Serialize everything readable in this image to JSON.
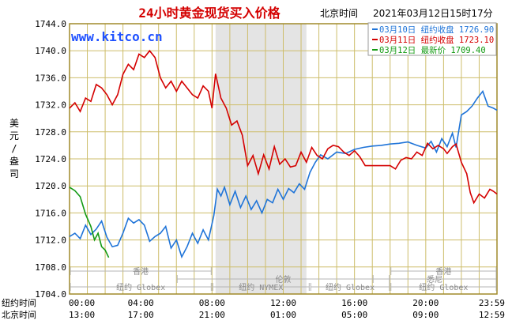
{
  "title": "24小时黄金现货买入价格",
  "location": "北京时间",
  "datetime": "2021年03月12日15时17分",
  "watermark": "www.kitco.cn",
  "colors": {
    "title": "#d40000",
    "watermark": "#1e50ff",
    "frame": "#a08a2a",
    "grid": "#cdbd6a",
    "night_band": "#e4e4e4",
    "series_blue": "#1f74d8",
    "series_red": "#d40000",
    "series_green": "#139a13",
    "legend_text_green": "#139a13"
  },
  "chart_data": {
    "type": "line",
    "ylabel": "美元/盎司",
    "ylim": [
      1704.0,
      1744.0
    ],
    "yticks": [
      "1744.0",
      "1740.0",
      "1736.0",
      "1732.0",
      "1728.0",
      "1724.0",
      "1720.0",
      "1716.0",
      "1712.0",
      "1708.0",
      "1704.0"
    ],
    "x_rows": [
      {
        "label": "纽约时间",
        "ticks": [
          "00:00",
          "04:00",
          "08:00",
          "12:00",
          "16:00",
          "20:00",
          "23:59"
        ]
      },
      {
        "label": "北京时间",
        "ticks": [
          "13:00",
          "17:00",
          "21:00",
          "01:00",
          "05:00",
          "09:00",
          "12:59"
        ]
      }
    ],
    "x_unit": "hours (New York time)",
    "xlim": [
      0,
      24
    ],
    "legend": [
      {
        "date": "03月10日",
        "label": "纽约收盘",
        "value": "1726.90",
        "series": "blue"
      },
      {
        "date": "03月11日",
        "label": "纽约收盘",
        "value": "1723.10",
        "series": "red"
      },
      {
        "date": "03月12日",
        "label": "最新价",
        "value": "1709.40",
        "series": "green"
      }
    ],
    "sessions": [
      {
        "name": "香港",
        "start": 0,
        "end": 8
      },
      {
        "name": "伦敦",
        "start": 6,
        "end": 18
      },
      {
        "name": "纽约 Globex",
        "start": 0,
        "end": 8
      },
      {
        "name": "纽约 NYMEX",
        "start": 8,
        "end": 13.5
      },
      {
        "name": "纽约 Globex",
        "start": 13.5,
        "end": 18
      },
      {
        "name": "悉尼",
        "start": 17,
        "end": 24
      },
      {
        "name": "香港",
        "start": 18,
        "end": 24
      },
      {
        "name": "纽约 Globex",
        "start": 18,
        "end": 24
      }
    ],
    "night_band": [
      8.2,
      13.3
    ],
    "series": [
      {
        "name": "03月10日",
        "color": "blue",
        "points": [
          [
            0,
            1712.5
          ],
          [
            0.3,
            1713.0
          ],
          [
            0.6,
            1712.2
          ],
          [
            0.9,
            1714.2
          ],
          [
            1.2,
            1712.8
          ],
          [
            1.5,
            1713.6
          ],
          [
            1.8,
            1714.8
          ],
          [
            2.1,
            1712.4
          ],
          [
            2.4,
            1711.0
          ],
          [
            2.7,
            1711.2
          ],
          [
            3.0,
            1713.0
          ],
          [
            3.3,
            1715.2
          ],
          [
            3.6,
            1714.5
          ],
          [
            3.9,
            1715.0
          ],
          [
            4.2,
            1714.2
          ],
          [
            4.5,
            1711.8
          ],
          [
            4.8,
            1712.5
          ],
          [
            5.1,
            1713.0
          ],
          [
            5.4,
            1714.0
          ],
          [
            5.7,
            1710.8
          ],
          [
            6.0,
            1712.0
          ],
          [
            6.3,
            1709.5
          ],
          [
            6.6,
            1711.0
          ],
          [
            6.9,
            1713.0
          ],
          [
            7.2,
            1711.5
          ],
          [
            7.5,
            1713.5
          ],
          [
            7.8,
            1712.0
          ],
          [
            8.1,
            1715.6
          ],
          [
            8.3,
            1719.5
          ],
          [
            8.5,
            1718.5
          ],
          [
            8.7,
            1719.8
          ],
          [
            9.0,
            1717.2
          ],
          [
            9.3,
            1719.2
          ],
          [
            9.6,
            1716.8
          ],
          [
            9.9,
            1718.5
          ],
          [
            10.2,
            1716.5
          ],
          [
            10.5,
            1717.8
          ],
          [
            10.8,
            1716.0
          ],
          [
            11.1,
            1718.0
          ],
          [
            11.4,
            1717.5
          ],
          [
            11.7,
            1719.5
          ],
          [
            12.0,
            1718.0
          ],
          [
            12.3,
            1719.6
          ],
          [
            12.6,
            1719.0
          ],
          [
            12.9,
            1720.3
          ],
          [
            13.2,
            1719.5
          ],
          [
            13.5,
            1722.0
          ],
          [
            13.8,
            1723.5
          ],
          [
            14.1,
            1724.6
          ],
          [
            14.5,
            1724.0
          ],
          [
            15.0,
            1725.0
          ],
          [
            15.5,
            1724.8
          ],
          [
            16.0,
            1725.4
          ],
          [
            16.5,
            1725.7
          ],
          [
            17.0,
            1725.9
          ],
          [
            17.5,
            1726.0
          ],
          [
            18.0,
            1726.2
          ],
          [
            18.5,
            1726.3
          ],
          [
            19.0,
            1726.5
          ],
          [
            19.5,
            1726.0
          ],
          [
            20.0,
            1725.6
          ],
          [
            20.3,
            1726.6
          ],
          [
            20.6,
            1725.0
          ],
          [
            20.9,
            1727.0
          ],
          [
            21.2,
            1725.8
          ],
          [
            21.5,
            1727.8
          ],
          [
            21.7,
            1725.7
          ],
          [
            22.0,
            1730.5
          ],
          [
            22.3,
            1731.0
          ],
          [
            22.6,
            1731.8
          ],
          [
            22.9,
            1733.0
          ],
          [
            23.2,
            1734.0
          ],
          [
            23.5,
            1731.8
          ],
          [
            23.8,
            1731.5
          ],
          [
            24.0,
            1731.2
          ]
        ]
      },
      {
        "name": "03月11日",
        "color": "red",
        "points": [
          [
            0,
            1731.5
          ],
          [
            0.3,
            1732.3
          ],
          [
            0.6,
            1731.0
          ],
          [
            0.9,
            1733.0
          ],
          [
            1.2,
            1732.5
          ],
          [
            1.5,
            1735.0
          ],
          [
            1.8,
            1734.5
          ],
          [
            2.1,
            1733.5
          ],
          [
            2.4,
            1732.0
          ],
          [
            2.7,
            1733.5
          ],
          [
            3.0,
            1736.5
          ],
          [
            3.3,
            1738.0
          ],
          [
            3.6,
            1737.2
          ],
          [
            3.9,
            1739.5
          ],
          [
            4.2,
            1739.0
          ],
          [
            4.5,
            1740.0
          ],
          [
            4.8,
            1739.0
          ],
          [
            5.1,
            1736.0
          ],
          [
            5.4,
            1734.5
          ],
          [
            5.7,
            1735.5
          ],
          [
            6.0,
            1734.0
          ],
          [
            6.3,
            1735.5
          ],
          [
            6.6,
            1734.5
          ],
          [
            6.9,
            1733.5
          ],
          [
            7.2,
            1733.0
          ],
          [
            7.5,
            1734.8
          ],
          [
            7.8,
            1734.0
          ],
          [
            8.0,
            1731.5
          ],
          [
            8.2,
            1736.6
          ],
          [
            8.5,
            1733.0
          ],
          [
            8.8,
            1731.5
          ],
          [
            9.1,
            1729.0
          ],
          [
            9.4,
            1729.6
          ],
          [
            9.7,
            1727.5
          ],
          [
            10.0,
            1723.0
          ],
          [
            10.3,
            1724.5
          ],
          [
            10.6,
            1721.8
          ],
          [
            10.9,
            1724.6
          ],
          [
            11.2,
            1722.5
          ],
          [
            11.5,
            1725.8
          ],
          [
            11.8,
            1723.2
          ],
          [
            12.1,
            1724.0
          ],
          [
            12.4,
            1722.8
          ],
          [
            12.7,
            1723.0
          ],
          [
            13.0,
            1725.0
          ],
          [
            13.3,
            1723.5
          ],
          [
            13.6,
            1725.7
          ],
          [
            13.9,
            1724.5
          ],
          [
            14.2,
            1724.0
          ],
          [
            14.5,
            1725.5
          ],
          [
            14.8,
            1726.0
          ],
          [
            15.1,
            1725.8
          ],
          [
            15.4,
            1725.0
          ],
          [
            15.7,
            1724.5
          ],
          [
            16.0,
            1725.2
          ],
          [
            16.3,
            1724.3
          ],
          [
            16.6,
            1723.0
          ],
          [
            17.0,
            1723.0
          ],
          [
            17.5,
            1723.0
          ],
          [
            18.0,
            1723.0
          ],
          [
            18.3,
            1722.5
          ],
          [
            18.6,
            1723.8
          ],
          [
            18.9,
            1724.2
          ],
          [
            19.2,
            1724.0
          ],
          [
            19.5,
            1725.0
          ],
          [
            19.8,
            1724.5
          ],
          [
            20.1,
            1726.3
          ],
          [
            20.4,
            1725.5
          ],
          [
            20.7,
            1726.0
          ],
          [
            21.0,
            1725.5
          ],
          [
            21.2,
            1724.8
          ],
          [
            21.5,
            1725.8
          ],
          [
            21.7,
            1726.2
          ],
          [
            22.0,
            1723.5
          ],
          [
            22.3,
            1721.8
          ],
          [
            22.5,
            1719.0
          ],
          [
            22.7,
            1717.5
          ],
          [
            23.0,
            1718.8
          ],
          [
            23.3,
            1718.2
          ],
          [
            23.6,
            1719.5
          ],
          [
            23.8,
            1719.2
          ],
          [
            24.0,
            1718.8
          ]
        ]
      },
      {
        "name": "03月12日",
        "color": "green",
        "points": [
          [
            0,
            1719.8
          ],
          [
            0.3,
            1719.3
          ],
          [
            0.6,
            1718.4
          ],
          [
            0.9,
            1715.8
          ],
          [
            1.2,
            1714.0
          ],
          [
            1.4,
            1712.0
          ],
          [
            1.6,
            1713.0
          ],
          [
            1.8,
            1711.0
          ],
          [
            2.0,
            1710.5
          ],
          [
            2.2,
            1709.4
          ]
        ]
      }
    ]
  }
}
